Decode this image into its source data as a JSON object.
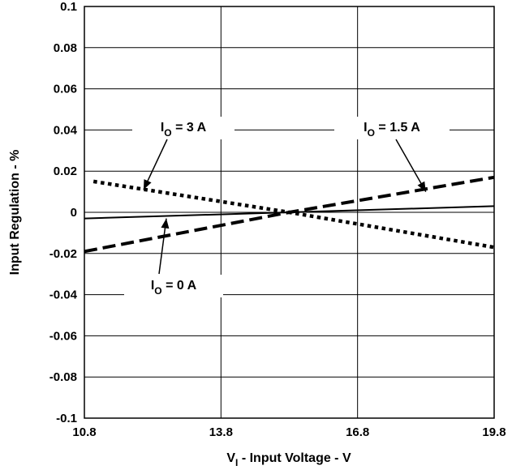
{
  "chart_data": {
    "type": "line",
    "xlabel": {
      "main": "V",
      "sub": "I",
      "rest": " - Input Voltage - V"
    },
    "ylabel": "Input Regulation - %",
    "xlim": [
      10.8,
      19.8
    ],
    "ylim": [
      -0.1,
      0.1
    ],
    "x_ticks": [
      10.8,
      13.8,
      16.8,
      19.8
    ],
    "x_tick_labels": [
      "10.8",
      "13.8",
      "16.8",
      "19.8"
    ],
    "y_ticks": [
      0.1,
      0.08,
      0.06,
      0.04,
      0.02,
      0,
      -0.02,
      -0.04,
      -0.06,
      -0.08,
      -0.1
    ],
    "y_tick_labels": [
      "0.1",
      "0.08",
      "0.06",
      "0.04",
      "0.02",
      "0",
      "-0.02",
      "-0.04",
      "-0.06",
      "-0.08",
      "-0.1"
    ],
    "grid": true,
    "series": [
      {
        "id": "io0",
        "style": "solid",
        "x": [
          10.8,
          15.3,
          19.8
        ],
        "values": [
          -0.003,
          0.0,
          0.003
        ]
      },
      {
        "id": "io15",
        "style": "dashed",
        "x": [
          10.8,
          15.3,
          19.8
        ],
        "values": [
          -0.019,
          0.0,
          0.017
        ]
      },
      {
        "id": "io3",
        "style": "dotted",
        "x": [
          11.0,
          15.3,
          19.8
        ],
        "values": [
          0.015,
          0.0,
          -0.017
        ]
      }
    ],
    "annotations": [
      {
        "id": "io3",
        "text": {
          "main": "I",
          "sub": "O",
          "rest": " = 3 A"
        },
        "arrow_to": [
          12.1,
          0.011
        ]
      },
      {
        "id": "io15",
        "text": {
          "main": "I",
          "sub": "O",
          "rest": " = 1.5 A"
        },
        "arrow_to": [
          18.3,
          0.01
        ]
      },
      {
        "id": "io0",
        "text": {
          "main": "I",
          "sub": "O",
          "rest": " = 0 A"
        },
        "arrow_to": [
          12.6,
          -0.003
        ]
      }
    ]
  }
}
